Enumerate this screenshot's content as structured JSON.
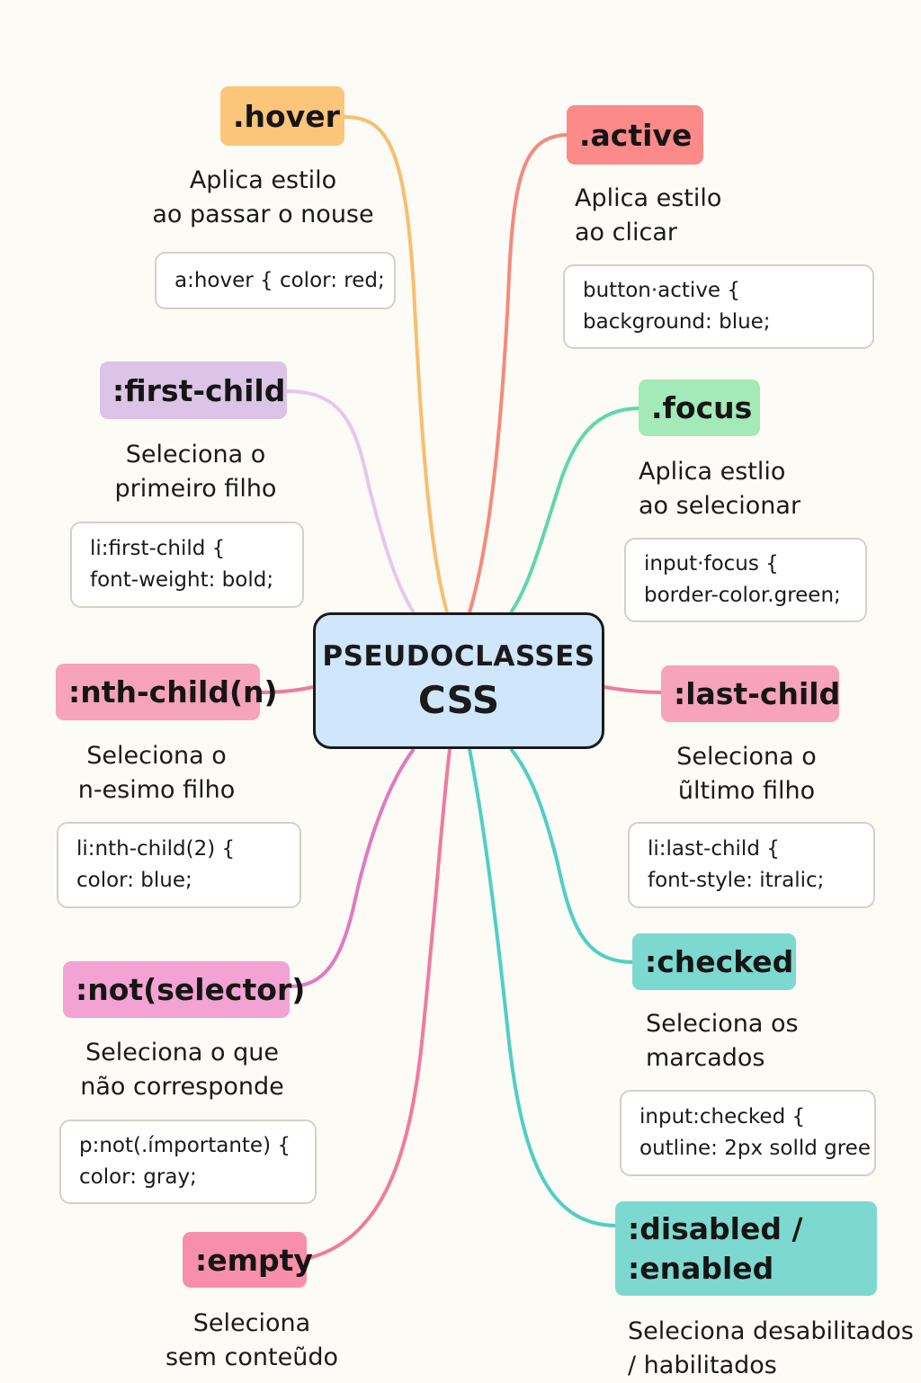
{
  "center": {
    "line1": "PSEUDOCLASSES",
    "line2": "CSS"
  },
  "nodes": {
    "hover": {
      "label": ".hover",
      "color": "#fbc57a",
      "desc": [
        "Aplica estilo",
        "ao passar o nouse"
      ],
      "code": [
        "a:hover { color: red;"
      ]
    },
    "active": {
      "label": ".active",
      "color": "#fb8a88",
      "desc": [
        "Aplica estilo",
        "ao clicar"
      ],
      "code": [
        "button·active {",
        "background: blue;"
      ]
    },
    "first_child": {
      "label": ":first-child",
      "color": "#dcc4e6",
      "desc": [
        "Seleciona o",
        "primeiro filho"
      ],
      "code": [
        "li:first-child {",
        "font-weight: bold;"
      ]
    },
    "focus": {
      "label": ".focus",
      "color": "#a4e9b8",
      "desc": [
        "Aplica estlio",
        "ao selecionar"
      ],
      "code": [
        "input·focus {",
        "border-color.green;"
      ]
    },
    "nth_child": {
      "label": ":nth-child(n)",
      "color": "#f7a3bd",
      "desc": [
        "Seleciona o",
        "n-esimo filho"
      ],
      "code": [
        "li:nth-child(2) {",
        "color: blue;"
      ]
    },
    "last_child": {
      "label": ":last-child",
      "color": "#f7a3bd",
      "desc": [
        "Seleciona o",
        "ũltimo filho"
      ],
      "code": [
        "li:last-child {",
        "font-style: itralic;"
      ]
    },
    "not": {
      "label": ":not(selector)",
      "color": "#f2a3d3",
      "desc": [
        "Seleciona o que",
        "não corresponde"
      ],
      "code": [
        "p:not(.ímportante) {",
        "color: gray;"
      ]
    },
    "checked": {
      "label": ":checked",
      "color": "#7dd9d0",
      "desc": [
        "Seleciona os",
        "marcados"
      ],
      "code": [
        "input:checked {",
        "outline: 2px solld gree"
      ]
    },
    "empty": {
      "label": ":empty",
      "color": "#f78fab",
      "desc": [
        "Seleciona",
        "sem conteũdo"
      ]
    },
    "disabled": {
      "label_line1": ":disabled /",
      "label_line2": ":enabled",
      "color": "#7dd9d0",
      "desc": [
        "Seleciona desabilitados",
        "/ habilitados"
      ]
    }
  },
  "link_colors": {
    "hover": "#f7bf6e",
    "active": "#f58a7c",
    "first_child": "#e8c6ec",
    "focus": "#5fd6ae",
    "nth_child": "#f07aa0",
    "last_child": "#f07aa0",
    "not": "#e07ac2",
    "checked": "#4fcfc6",
    "empty": "#f07aa0",
    "disabled": "#4fcfc6"
  }
}
